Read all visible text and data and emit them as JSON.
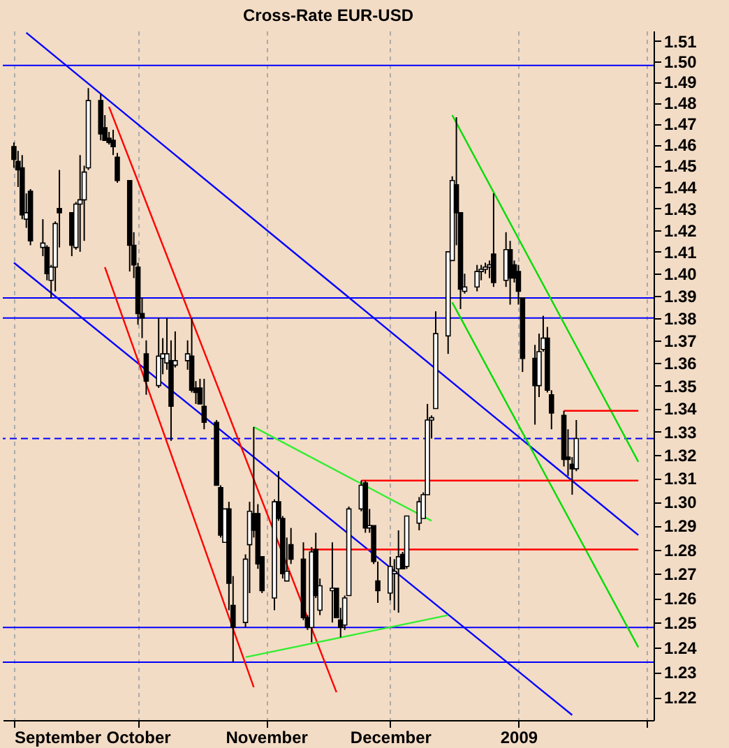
{
  "chart_data": {
    "type": "candlestick",
    "title": "Cross-Rate   EUR-USD",
    "x": [
      "2008-09-01",
      "2008-09-02",
      "2008-09-03",
      "2008-09-04",
      "2008-09-05",
      "2008-09-08",
      "2008-09-09",
      "2008-09-10",
      "2008-09-11",
      "2008-09-12",
      "2008-09-15",
      "2008-09-16",
      "2008-09-17",
      "2008-09-18",
      "2008-09-19",
      "2008-09-22",
      "2008-09-23",
      "2008-09-24",
      "2008-09-25",
      "2008-09-26",
      "2008-09-29",
      "2008-09-30",
      "2008-10-01",
      "2008-10-02",
      "2008-10-03",
      "2008-10-06",
      "2008-10-07",
      "2008-10-08",
      "2008-10-09",
      "2008-10-10",
      "2008-10-13",
      "2008-10-14",
      "2008-10-15",
      "2008-10-16",
      "2008-10-17",
      "2008-10-20",
      "2008-10-21",
      "2008-10-22",
      "2008-10-23",
      "2008-10-24",
      "2008-10-27",
      "2008-10-28",
      "2008-10-29",
      "2008-10-30",
      "2008-10-31",
      "2008-11-03",
      "2008-11-04",
      "2008-11-05",
      "2008-11-06",
      "2008-11-07",
      "2008-11-10",
      "2008-11-11",
      "2008-11-12",
      "2008-11-13",
      "2008-11-14",
      "2008-11-17",
      "2008-11-18",
      "2008-11-19",
      "2008-11-20",
      "2008-11-21",
      "2008-11-24",
      "2008-11-25",
      "2008-11-26",
      "2008-11-27",
      "2008-11-28",
      "2008-12-01",
      "2008-12-02",
      "2008-12-03",
      "2008-12-04",
      "2008-12-05",
      "2008-12-08",
      "2008-12-09",
      "2008-12-10",
      "2008-12-11",
      "2008-12-12",
      "2008-12-15",
      "2008-12-16",
      "2008-12-17",
      "2008-12-18",
      "2008-12-19",
      "2008-12-22",
      "2008-12-23",
      "2008-12-24",
      "2008-12-25",
      "2008-12-26",
      "2008-12-29",
      "2008-12-30",
      "2008-12-31",
      "2009-01-01",
      "2009-01-02",
      "2009-01-05",
      "2009-01-06",
      "2009-01-07",
      "2009-01-08",
      "2009-01-09",
      "2009-01-12",
      "2009-01-13",
      "2009-01-14",
      "2009-01-15"
    ],
    "ohlc": [
      [
        1.459,
        1.461,
        1.449,
        1.453
      ],
      [
        1.452,
        1.457,
        1.44,
        1.448
      ],
      [
        1.449,
        1.455,
        1.425,
        1.427
      ],
      [
        1.425,
        1.437,
        1.421,
        1.428
      ],
      [
        1.438,
        1.439,
        1.413,
        1.415
      ],
      [
        1.412,
        1.425,
        1.408,
        1.414
      ],
      [
        1.412,
        1.413,
        1.397,
        1.4
      ],
      [
        1.397,
        1.404,
        1.389,
        1.403
      ],
      [
        1.403,
        1.424,
        1.392,
        1.423
      ],
      [
        1.43,
        1.448,
        1.412,
        1.428
      ],
      [
        1.428,
        1.428,
        1.408,
        1.413
      ],
      [
        1.412,
        1.433,
        1.411,
        1.432
      ],
      [
        1.432,
        1.455,
        1.41,
        1.434
      ],
      [
        1.434,
        1.45,
        1.415,
        1.447
      ],
      [
        1.449,
        1.487,
        1.448,
        1.481
      ],
      [
        1.481,
        1.484,
        1.462,
        1.465
      ],
      [
        1.468,
        1.474,
        1.462,
        1.462
      ],
      [
        1.463,
        1.466,
        1.46,
        1.461
      ],
      [
        1.462,
        1.467,
        1.455,
        1.459
      ],
      [
        1.454,
        1.456,
        1.442,
        1.443
      ],
      [
        1.443,
        1.443,
        1.401,
        1.413
      ],
      [
        1.413,
        1.419,
        1.398,
        1.404
      ],
      [
        1.403,
        1.405,
        1.377,
        1.382
      ],
      [
        1.382,
        1.389,
        1.371,
        1.38
      ],
      [
        1.364,
        1.37,
        1.346,
        1.352
      ],
      [
        1.35,
        1.38,
        1.349,
        1.363
      ],
      [
        1.362,
        1.371,
        1.355,
        1.364
      ],
      [
        1.36,
        1.38,
        1.357,
        1.364
      ],
      [
        1.361,
        1.37,
        1.326,
        1.341
      ],
      [
        1.359,
        1.374,
        1.358,
        1.361
      ],
      [
        1.361,
        1.37,
        1.357,
        1.364
      ],
      [
        1.363,
        1.38,
        1.347,
        1.348
      ],
      [
        1.349,
        1.352,
        1.342,
        1.347
      ],
      [
        1.349,
        1.353,
        1.342,
        1.342
      ],
      [
        1.341,
        1.353,
        1.331,
        1.334
      ],
      [
        1.334,
        1.335,
        1.307,
        1.307
      ],
      [
        1.306,
        1.307,
        1.285,
        1.286
      ],
      [
        1.283,
        1.297,
        1.283,
        1.297
      ],
      [
        1.297,
        1.3,
        1.255,
        1.266
      ],
      [
        1.257,
        1.269,
        1.234,
        1.248
      ],
      [
        1.25,
        1.278,
        1.248,
        1.276
      ],
      [
        1.282,
        1.3,
        1.262,
        1.296
      ],
      [
        1.295,
        1.332,
        1.285,
        1.288
      ],
      [
        1.295,
        1.299,
        1.272,
        1.274
      ],
      [
        1.277,
        1.277,
        1.262,
        1.263
      ],
      [
        1.26,
        1.301,
        1.255,
        1.3
      ],
      [
        1.3,
        1.313,
        1.292,
        1.293
      ],
      [
        1.293,
        1.294,
        1.268,
        1.27
      ],
      [
        1.267,
        1.285,
        1.267,
        1.271
      ],
      [
        1.282,
        1.289,
        1.274,
        1.276
      ],
      [
        1.276,
        1.283,
        1.251,
        1.252
      ],
      [
        1.252,
        1.253,
        1.247,
        1.248
      ],
      [
        1.248,
        1.281,
        1.242,
        1.279
      ],
      [
        1.28,
        1.287,
        1.26,
        1.261
      ],
      [
        1.255,
        1.268,
        1.253,
        1.265
      ],
      [
        1.263,
        1.283,
        1.25,
        1.264
      ],
      [
        1.264,
        1.264,
        1.252,
        1.252
      ],
      [
        1.251,
        1.256,
        1.244,
        1.248
      ],
      [
        1.249,
        1.261,
        1.247,
        1.26
      ],
      [
        1.261,
        1.298,
        1.261,
        1.297
      ],
      [
        1.297,
        1.309,
        1.296,
        1.307
      ],
      [
        1.308,
        1.309,
        1.287,
        1.289
      ],
      [
        1.289,
        1.297,
        1.287,
        1.29
      ],
      [
        1.29,
        1.29,
        1.274,
        1.275
      ],
      [
        1.267,
        1.275,
        1.258,
        1.263
      ],
      [
        1.262,
        1.277,
        1.259,
        1.273
      ],
      [
        1.27,
        1.276,
        1.255,
        1.271
      ],
      [
        1.272,
        1.288,
        1.254,
        1.277
      ],
      [
        1.278,
        1.279,
        1.272,
        1.272
      ],
      [
        1.273,
        1.294,
        1.272,
        1.294
      ],
      [
        1.291,
        1.302,
        1.288,
        1.3
      ],
      [
        1.293,
        1.304,
        1.293,
        1.303
      ],
      [
        1.303,
        1.342,
        1.303,
        1.335
      ],
      [
        1.335,
        1.337,
        1.327,
        1.336
      ],
      [
        1.34,
        1.383,
        1.34,
        1.373
      ],
      [
        1.372,
        1.41,
        1.364,
        1.41
      ],
      [
        1.406,
        1.445,
        1.406,
        1.443
      ],
      [
        1.441,
        1.473,
        1.413,
        1.428
      ],
      [
        1.428,
        1.428,
        1.384,
        1.393
      ],
      [
        1.392,
        1.4,
        1.391,
        1.394
      ],
      [
        1.394,
        1.404,
        1.392,
        1.401
      ],
      [
        1.401,
        1.404,
        1.397,
        1.402
      ],
      [
        1.402,
        1.405,
        1.4,
        1.403
      ],
      [
        1.403,
        1.406,
        1.398,
        1.404
      ],
      [
        1.409,
        1.437,
        1.394,
        1.396
      ],
      [
        1.397,
        1.419,
        1.394,
        1.411
      ],
      [
        1.411,
        1.415,
        1.386,
        1.398
      ],
      [
        1.404,
        1.406,
        1.396,
        1.398
      ],
      [
        1.401,
        1.404,
        1.386,
        1.392
      ],
      [
        1.389,
        1.389,
        1.356,
        1.362
      ],
      [
        1.362,
        1.368,
        1.333,
        1.35
      ],
      [
        1.35,
        1.373,
        1.345,
        1.365
      ],
      [
        1.366,
        1.381,
        1.365,
        1.371
      ],
      [
        1.371,
        1.376,
        1.347,
        1.348
      ],
      [
        1.346,
        1.348,
        1.331,
        1.338
      ],
      [
        1.337,
        1.339,
        1.315,
        1.318
      ],
      [
        1.319,
        1.331,
        1.311,
        1.318
      ],
      [
        1.316,
        1.319,
        1.303,
        1.314
      ],
      [
        1.314,
        1.335,
        1.313,
        1.327
      ]
    ],
    "series": [
      {
        "type": "line",
        "color": "#0000ff",
        "x": [
          "2008-09-04",
          "2009-01-30"
        ],
        "values": [
          1.514,
          1.286
        ]
      },
      {
        "type": "line",
        "color": "#0000ff",
        "x": [
          "2008-09-01",
          "2009-01-14"
        ],
        "values": [
          1.405,
          1.213
        ]
      },
      {
        "type": "line",
        "color": "#ff0000",
        "x": [
          "2008-09-24",
          "2008-11-18"
        ],
        "values": [
          1.478,
          1.222
        ]
      },
      {
        "type": "line",
        "color": "#ff0000",
        "x": [
          "2008-09-23",
          "2008-10-29"
        ],
        "values": [
          1.403,
          1.224
        ]
      },
      {
        "type": "line",
        "color": "#00dd00",
        "x": [
          "2008-12-16",
          "2009-01-30"
        ],
        "values": [
          1.474,
          1.317
        ]
      },
      {
        "type": "line",
        "color": "#00dd00",
        "x": [
          "2008-12-16",
          "2009-01-30"
        ],
        "values": [
          1.387,
          1.24
        ]
      },
      {
        "type": "line",
        "color": "#33ee33",
        "x": [
          "2008-10-29",
          "2008-12-11"
        ],
        "values": [
          1.332,
          1.292
        ]
      },
      {
        "type": "line",
        "color": "#33ee33",
        "x": [
          "2008-10-27",
          "2008-12-15"
        ],
        "values": [
          1.236,
          1.253
        ]
      },
      {
        "type": "line",
        "color": "#ff0000",
        "x": [
          "2009-01-12",
          "2009-01-30"
        ],
        "values": [
          1.339,
          1.339
        ]
      },
      {
        "type": "line",
        "color": "#ff0000",
        "x": [
          "2008-11-24",
          "2009-01-30"
        ],
        "values": [
          1.309,
          1.309
        ]
      },
      {
        "type": "line",
        "color": "#ff0000",
        "x": [
          "2008-11-10",
          "2009-01-30"
        ],
        "values": [
          1.28,
          1.28
        ]
      }
    ],
    "ref_lines": [
      {
        "axis": "y",
        "value": 1.498,
        "color": "#0000ff"
      },
      {
        "axis": "y",
        "value": 1.389,
        "color": "#0000ff"
      },
      {
        "axis": "y",
        "value": 1.38,
        "color": "#0000ff"
      },
      {
        "axis": "y",
        "value": 1.327,
        "color": "#0000ff",
        "line_style": "dashed"
      },
      {
        "axis": "y",
        "value": 1.248,
        "color": "#0000ff"
      },
      {
        "axis": "y",
        "value": 1.234,
        "color": "#0000ff"
      }
    ],
    "log": "y",
    "xlim": [
      "2008-08-31",
      "2009-02-01"
    ],
    "xticks": [
      {
        "value": "2008-09-01",
        "label": "September"
      },
      {
        "value": "2008-10-01",
        "label": "October"
      },
      {
        "value": "2008-11-01",
        "label": "November"
      },
      {
        "value": "2008-12-01",
        "label": "December"
      },
      {
        "value": "2009-01-01",
        "label": "2009"
      },
      {
        "value": "2009-02-01",
        "label": null
      }
    ],
    "ylim": [
      1.211,
      1.515
    ],
    "yticks": [
      1.22,
      1.23,
      1.24,
      1.25,
      1.26,
      1.27,
      1.28,
      1.29,
      {
        "value": 1.3,
        "label": "1.30"
      },
      1.31,
      1.32,
      1.33,
      1.34,
      1.35,
      1.36,
      1.37,
      1.38,
      1.39,
      {
        "value": 1.4,
        "label": "1.40"
      },
      1.41,
      1.42,
      1.43,
      1.44,
      1.45,
      1.46,
      1.47,
      1.48,
      1.49,
      {
        "value": 1.5,
        "label": "1.50"
      },
      1.51
    ],
    "grid": "x"
  }
}
